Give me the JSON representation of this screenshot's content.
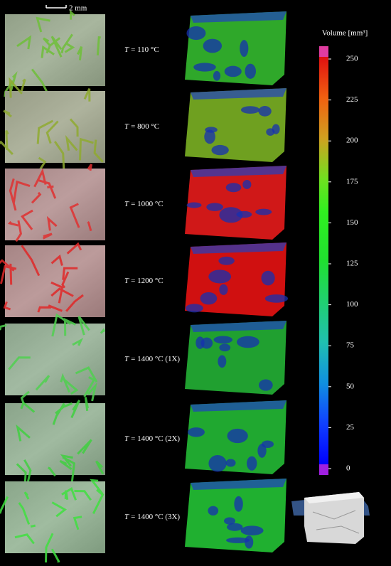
{
  "scale_bar": {
    "label": "2 mm"
  },
  "rows": [
    {
      "symbol": "T",
      "text": "= 110 °C"
    },
    {
      "symbol": "T",
      "text": "= 800 °C"
    },
    {
      "symbol": "T",
      "text": "= 1000 °C"
    },
    {
      "symbol": "T",
      "text": "= 1200 °C"
    },
    {
      "symbol": "T",
      "text": "= 1400 °C (1X)"
    },
    {
      "symbol": "T",
      "text": "= 1400 °C (2X)"
    },
    {
      "symbol": "T",
      "text": "= 1400 °C (3X)"
    }
  ],
  "colorbar": {
    "title": "Volume [mm³]",
    "range": [
      0,
      250
    ],
    "ticks": [
      0,
      25,
      50,
      75,
      100,
      125,
      150,
      175,
      200,
      225,
      250
    ]
  }
}
